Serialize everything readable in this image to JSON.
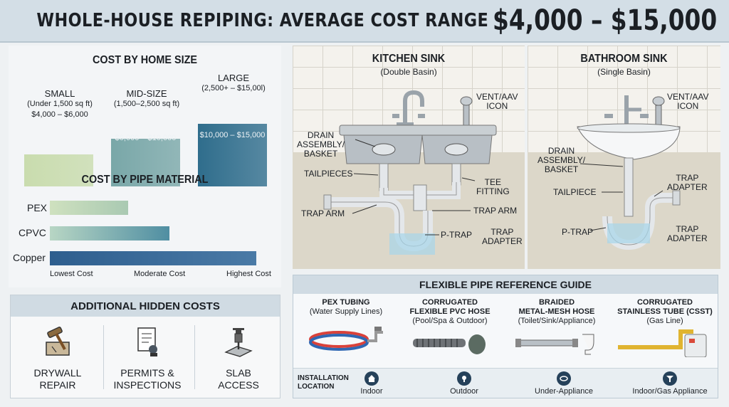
{
  "title": {
    "main": "WHOLE-HOUSE REPIPING: AVERAGE COST RANGE",
    "range": "$4,000 – $15,000"
  },
  "home_size": {
    "title": "COST BY HOME SIZE",
    "items": [
      {
        "name": "SMALL",
        "sub": "(Under 1,500 sq ft)",
        "value": "$4,000 – $6,000",
        "level": 0.28,
        "color": "#c9dcae"
      },
      {
        "name": "MID-SIZE",
        "sub": "(1,500–2,500 sq ft)",
        "value": "$6,000 – $10,000",
        "level": 0.42,
        "color": "#79a7a8"
      },
      {
        "name": "LARGE",
        "sub": "(2,500+ – $15,00l)",
        "value": "$10,000 – $15,000",
        "level": 0.55,
        "color": "#2f6d8c"
      }
    ]
  },
  "material": {
    "title": "COST BY PIPE MATERIAL",
    "items": [
      {
        "name": "PEX",
        "level": 0.38
      },
      {
        "name": "CPVC",
        "level": 0.58
      },
      {
        "name": "Copper",
        "level": 1.0
      }
    ],
    "axis": [
      "Lowest Cost",
      "Moderate Cost",
      "Highest Cost"
    ]
  },
  "hidden_costs": {
    "title": "ADDITIONAL HIDDEN COSTS",
    "items": [
      {
        "label_1": "DRYWALL",
        "label_2": "REPAIR",
        "icon": "hammer-icon"
      },
      {
        "label_1": "PERMITS &",
        "label_2": "INSPECTIONS",
        "icon": "permit-document-icon"
      },
      {
        "label_1": "SLAB",
        "label_2": "ACCESS",
        "icon": "jackhammer-icon"
      }
    ]
  },
  "kitchen": {
    "title": "KITCHEN SINK",
    "sub": "(Double Basin)",
    "labels": {
      "vent_1": "VENT/AAV",
      "vent_2": "ICON",
      "drain_1": "DRAIN",
      "drain_2": "ASSEMBLY/",
      "drain_3": "BASKET",
      "tailpieces": "TAILPIECES",
      "tee_1": "TEE",
      "tee_2": "FITTING",
      "trap_arm_l": "TRAP ARM",
      "trap_arm_r": "TRAP ARM",
      "ptrap": "P-TRAP",
      "adapter_1": "TRAP",
      "adapter_2": "ADAPTER"
    }
  },
  "bathroom": {
    "title": "BATHROOM SINK",
    "sub": "(Single Basin)",
    "labels": {
      "vent_1": "VENT/AAV",
      "vent_2": "ICON",
      "drain_1": "DRAIN",
      "drain_2": "ASSEMBLY/",
      "drain_3": "BASKET",
      "tailpiece": "TAILPIECE",
      "adapter_1": "TRAP",
      "adapter_2": "ADAPTER",
      "ptrap": "P-TRAP",
      "adapter2_1": "TRAP",
      "adapter2_2": "ADAPTER"
    }
  },
  "guide": {
    "title": "FLEXIBLE PIPE REFERENCE GUIDE",
    "columns": [
      {
        "t1": "PEX TUBING",
        "t2": "",
        "sub": "(Water Supply Lines)"
      },
      {
        "t1": "CORRUGATED",
        "t2": "FLEXIBLE PVC HOSE",
        "sub": "(Pool/Spa & Outdoor)"
      },
      {
        "t1": "BRAIDED",
        "t2": "METAL-MESH HOSE",
        "sub": "(Toilet/Sink/Appliance)"
      },
      {
        "t1": "CORRUGATED",
        "t2": "STAINLESS TUBE (CSST)",
        "sub": "(Gas Line)"
      }
    ],
    "location_label_1": "INSTALLATION",
    "location_label_2": "LOCATION",
    "locations": [
      "Indoor",
      "Outdoor",
      "Under-Appliance",
      "Indoor/Gas Appliance"
    ]
  }
}
